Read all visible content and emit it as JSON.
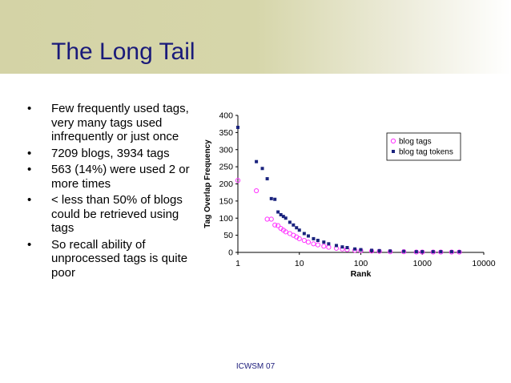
{
  "slide": {
    "title": "The Long Tail",
    "bullets": [
      "Few frequently used tags, very many tags used infrequently or just once",
      "7209 blogs, 3934 tags",
      "563 (14%) were used  2 or more times",
      "< less than 50% of blogs could be retrieved using tags",
      "So recall ability of unprocessed tags is quite poor"
    ],
    "bullet_glyph": "•",
    "footer": "ICWSM 07"
  },
  "colors": {
    "title": "#1a1a7a",
    "blog_tags": "#ff33ff",
    "blog_tag_tokens": "#1a237e"
  },
  "chart_data": {
    "type": "scatter",
    "xlabel": "Rank",
    "ylabel": "Tag Overlap Frequency",
    "x_scale": "log",
    "xlim": [
      1,
      10000
    ],
    "ylim": [
      0,
      400
    ],
    "x_ticks": [
      "1",
      "10",
      "100",
      "1000",
      "10000"
    ],
    "y_ticks": [
      "0",
      "50",
      "100",
      "150",
      "200",
      "250",
      "300",
      "350",
      "400"
    ],
    "grid": false,
    "legend": "top-right",
    "series": [
      {
        "name": "blog tags",
        "marker": "open-circle",
        "x": [
          1,
          2,
          3,
          3.5,
          4,
          4.5,
          5,
          5.5,
          6,
          7,
          8,
          9,
          10,
          12,
          14,
          17,
          20,
          25,
          30,
          40,
          50,
          60,
          80,
          100,
          150,
          200,
          300,
          500,
          800,
          1000,
          1500,
          2000,
          3000,
          4000
        ],
        "y": [
          210,
          180,
          97,
          97,
          80,
          78,
          70,
          65,
          60,
          55,
          50,
          45,
          40,
          35,
          30,
          25,
          22,
          18,
          15,
          12,
          10,
          8,
          6,
          5,
          4,
          3,
          2,
          2,
          1,
          1,
          1,
          1,
          1,
          1
        ]
      },
      {
        "name": "blog tag tokens",
        "marker": "filled-square",
        "x": [
          1,
          2,
          2.5,
          3,
          3.5,
          4,
          4.5,
          5,
          5.5,
          6,
          7,
          8,
          9,
          10,
          12,
          14,
          17,
          20,
          25,
          30,
          40,
          50,
          60,
          80,
          100,
          150,
          200,
          300,
          500,
          800,
          1000,
          1500,
          2000,
          3000,
          4000
        ],
        "y": [
          365,
          265,
          245,
          215,
          157,
          155,
          118,
          110,
          105,
          100,
          88,
          80,
          72,
          65,
          55,
          48,
          40,
          35,
          30,
          25,
          20,
          16,
          14,
          10,
          8,
          6,
          5,
          4,
          3,
          2,
          2,
          2,
          2,
          2,
          2
        ]
      }
    ]
  }
}
